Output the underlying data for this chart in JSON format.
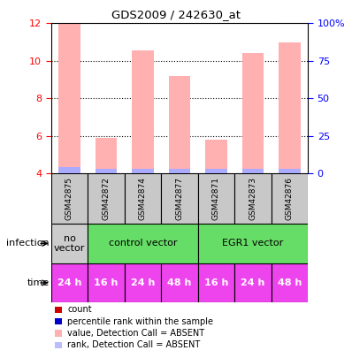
{
  "title": "GDS2009 / 242630_at",
  "samples": [
    "GSM42875",
    "GSM42872",
    "GSM42874",
    "GSM42877",
    "GSM42871",
    "GSM42873",
    "GSM42876"
  ],
  "bar_values": [
    12.0,
    5.9,
    10.55,
    9.2,
    5.8,
    10.4,
    11.0
  ],
  "rank_values": [
    4.35,
    4.25,
    4.25,
    4.25,
    4.25,
    4.25,
    4.25
  ],
  "ylim_left": [
    4,
    12
  ],
  "ylim_right": [
    0,
    100
  ],
  "yticks_left": [
    4,
    6,
    8,
    10,
    12
  ],
  "yticks_right": [
    0,
    25,
    50,
    75,
    100
  ],
  "ytick_labels_right": [
    "0",
    "25",
    "50",
    "75",
    "100%"
  ],
  "bar_color": "#FFB0B0",
  "rank_color": "#AAAAFF",
  "infection_groups": [
    {
      "label": "no\nvector",
      "start": 0,
      "end": 1,
      "color": "#CCCCCC"
    },
    {
      "label": "control vector",
      "start": 1,
      "end": 4,
      "color": "#66DD66"
    },
    {
      "label": "EGR1 vector",
      "start": 4,
      "end": 7,
      "color": "#66DD66"
    }
  ],
  "time_labels": [
    "24 h",
    "16 h",
    "24 h",
    "48 h",
    "16 h",
    "24 h",
    "48 h"
  ],
  "time_color": "#EE44EE",
  "sample_bg_color": "#C8C8C8",
  "legend_items": [
    {
      "color": "#CC0000",
      "label": "count"
    },
    {
      "color": "#0000CC",
      "label": "percentile rank within the sample"
    },
    {
      "color": "#FFB0B0",
      "label": "value, Detection Call = ABSENT"
    },
    {
      "color": "#BBBBFF",
      "label": "rank, Detection Call = ABSENT"
    }
  ],
  "infection_label": "infection",
  "time_label": "time"
}
